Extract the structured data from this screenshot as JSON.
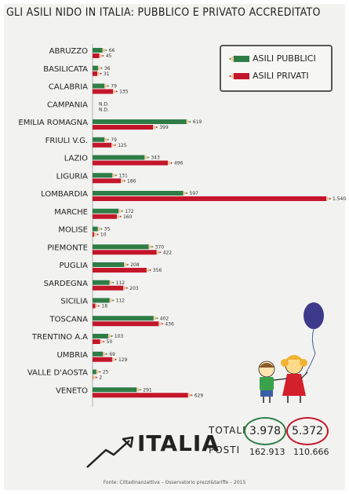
{
  "title": "GLI ASILI NIDO IN ITALIA: PUBBLICO E PRIVATO ACCREDITATO",
  "legend": {
    "public_label": "ASILI PUBBLICI",
    "private_label": "ASILI PRIVATI"
  },
  "colors": {
    "public": "#2e7d47",
    "private": "#c4162a",
    "background": "#f2f2f0"
  },
  "chart_data": {
    "type": "bar",
    "orientation": "horizontal",
    "categories": [
      "ABRUZZO",
      "BASILICATA",
      "CALABRIA",
      "CAMPANIA",
      "EMILIA ROMAGNA",
      "FRIULI V.G.",
      "LAZIO",
      "LIGURIA",
      "LOMBARDIA",
      "MARCHE",
      "MOLISE",
      "PIEMONTE",
      "PUGLIA",
      "SARDEGNA",
      "SICILIA",
      "TOSCANA",
      "TRENTINO A.A",
      "UMBRIA",
      "VALLE D'AOSTA",
      "VENETO"
    ],
    "series": [
      {
        "name": "ASILI PUBBLICI",
        "values": [
          66,
          36,
          79,
          null,
          619,
          79,
          343,
          131,
          597,
          172,
          35,
          370,
          208,
          112,
          112,
          402,
          103,
          69,
          25,
          291
        ],
        "labels": [
          "66",
          "36",
          "79",
          "N.D.",
          "619",
          "79",
          "343",
          "131",
          "597",
          "172",
          "35",
          "370",
          "208",
          "112",
          "112",
          "402",
          "103",
          "69",
          "25",
          "291"
        ]
      },
      {
        "name": "ASILI PRIVATI",
        "values": [
          45,
          31,
          135,
          null,
          399,
          125,
          496,
          186,
          1540,
          160,
          10,
          422,
          356,
          203,
          18,
          436,
          50,
          129,
          2,
          629
        ],
        "labels": [
          "45",
          "31",
          "135",
          "N.D.",
          "399",
          "125",
          "496",
          "186",
          "1.540",
          "160",
          "10",
          "422",
          "356",
          "203",
          "18",
          "436",
          "50",
          "129",
          "2",
          "629"
        ]
      }
    ]
  },
  "italia": {
    "word": "ITALIA",
    "totale_label": "TOTALE",
    "posti_label": "POSTI",
    "total_public": "3.978",
    "total_private": "5.372",
    "posti_public": "162.913",
    "posti_private": "110.666"
  },
  "source": "Fonte: Cittadinanzattiva – Osservatorio prezzi&tariffe – 2015"
}
